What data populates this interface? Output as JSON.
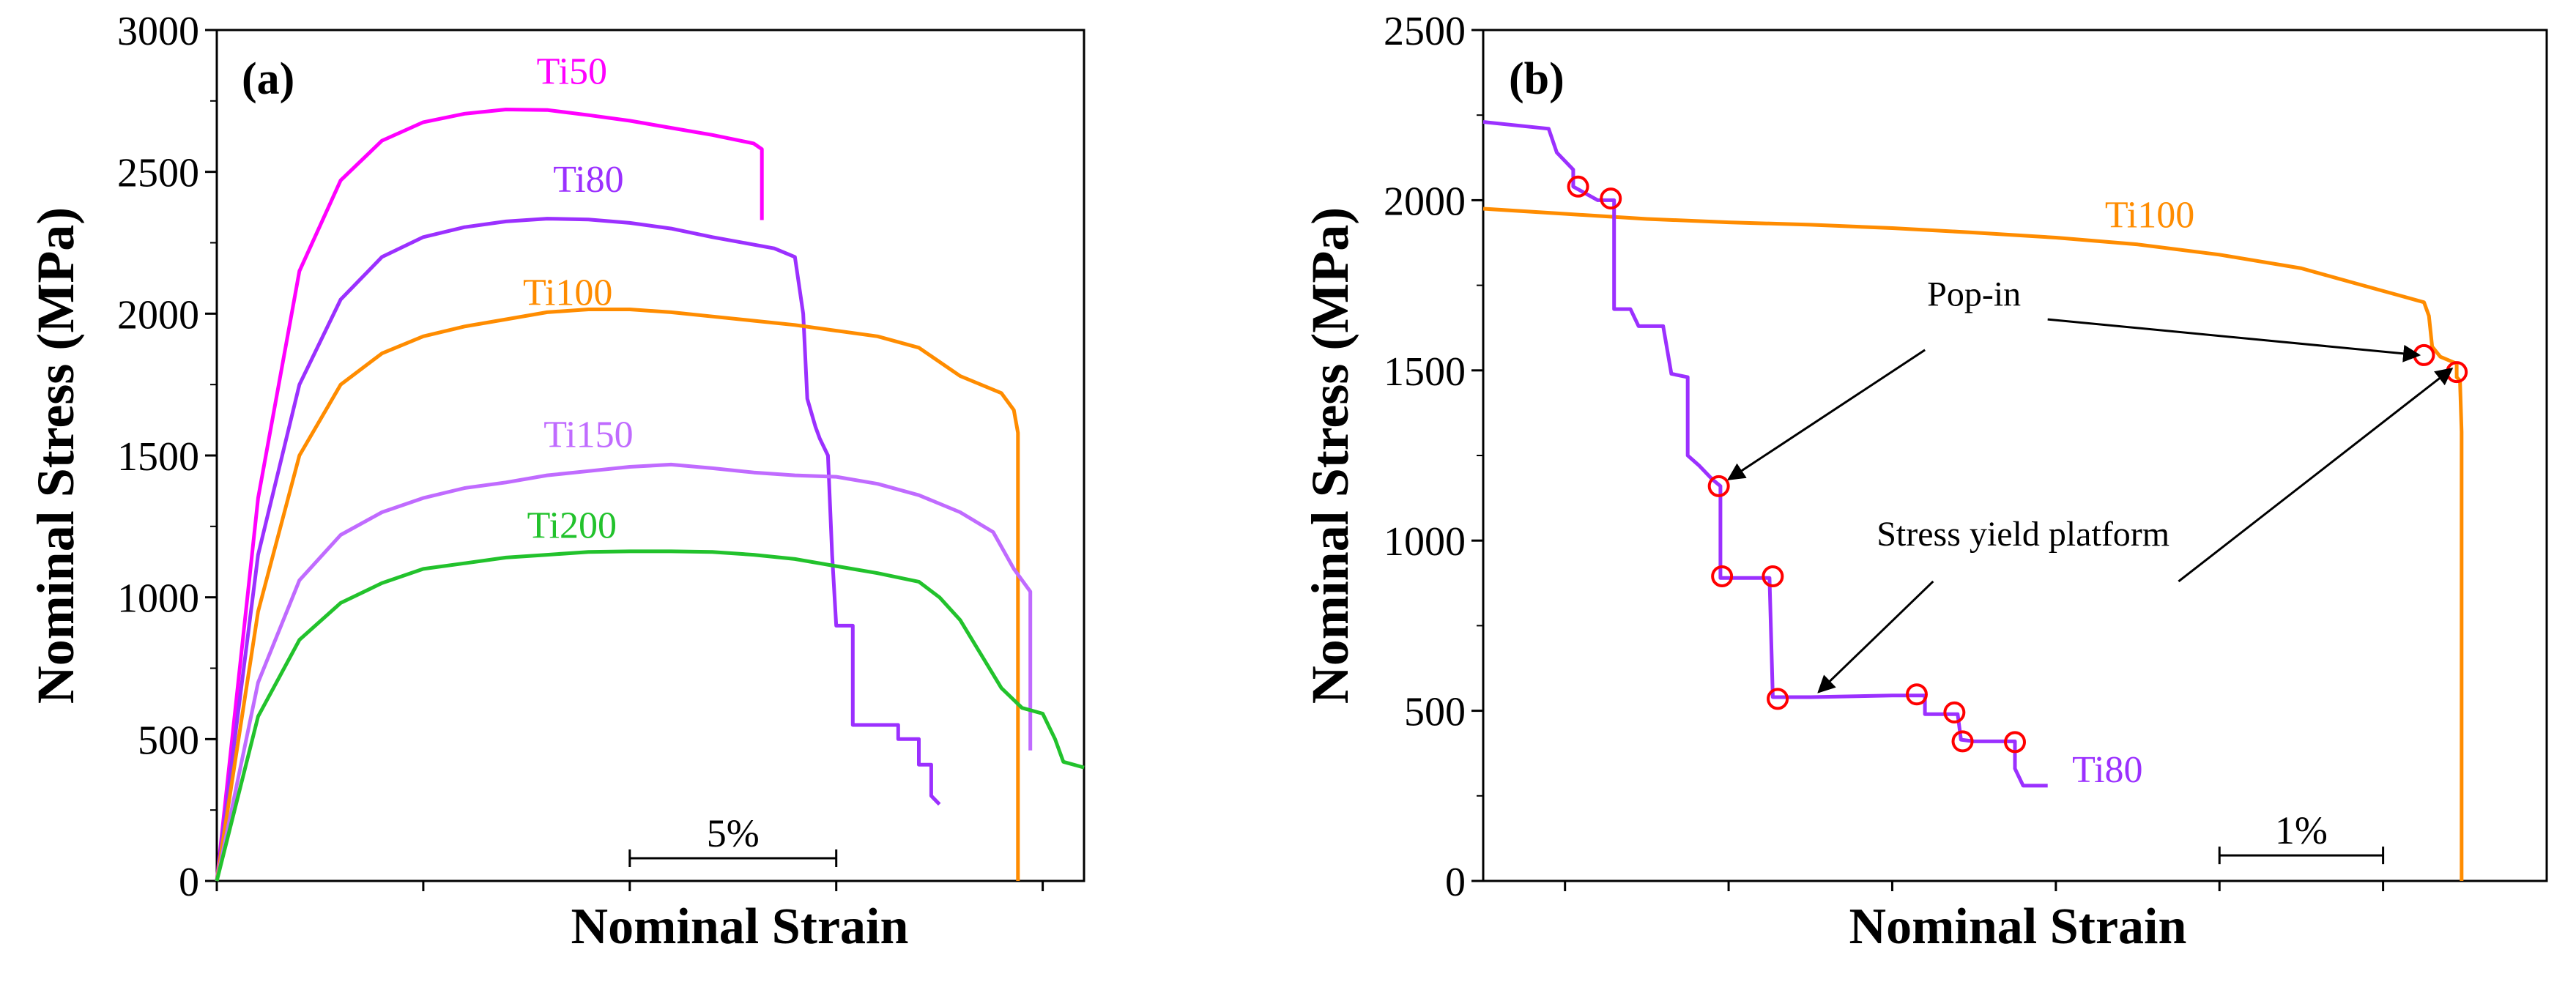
{
  "chart_data": [
    {
      "panel": "a",
      "panel_label": "(a)",
      "type": "line",
      "xlabel": "Nominal Strain",
      "ylabel": "Nominal Stress (MPa)",
      "xlim": [
        0,
        21
      ],
      "ylim": [
        0,
        3000
      ],
      "yticks": [
        0,
        500,
        1000,
        1500,
        2000,
        2500,
        3000
      ],
      "xticks_unlabeled": [
        0,
        5,
        10,
        15,
        20
      ],
      "scale_bar": {
        "label": "5%",
        "from": 10,
        "to": 15,
        "y": 80
      },
      "series": [
        {
          "name": "Ti50",
          "color": "#ff00ff",
          "label_at": [
            8.6,
            2810
          ],
          "points": [
            [
              0,
              0
            ],
            [
              1,
              1350
            ],
            [
              2,
              2150
            ],
            [
              3,
              2470
            ],
            [
              4,
              2610
            ],
            [
              5,
              2675
            ],
            [
              6,
              2705
            ],
            [
              7,
              2720
            ],
            [
              8,
              2718
            ],
            [
              9,
              2700
            ],
            [
              10,
              2680
            ],
            [
              11,
              2655
            ],
            [
              12,
              2630
            ],
            [
              13,
              2600
            ],
            [
              13.2,
              2580
            ],
            [
              13.2,
              2330
            ]
          ]
        },
        {
          "name": "Ti80",
          "color": "#9b30ff",
          "label_at": [
            9.0,
            2430
          ],
          "points": [
            [
              0,
              0
            ],
            [
              1,
              1150
            ],
            [
              2,
              1750
            ],
            [
              3,
              2050
            ],
            [
              4,
              2200
            ],
            [
              5,
              2270
            ],
            [
              6,
              2305
            ],
            [
              7,
              2325
            ],
            [
              8,
              2335
            ],
            [
              9,
              2332
            ],
            [
              10,
              2320
            ],
            [
              11,
              2300
            ],
            [
              12,
              2270
            ],
            [
              13.5,
              2230
            ],
            [
              14,
              2200
            ],
            [
              14.2,
              2000
            ],
            [
              14.3,
              1700
            ],
            [
              14.5,
              1600
            ],
            [
              14.6,
              1560
            ],
            [
              14.8,
              1500
            ],
            [
              14.9,
              1150
            ],
            [
              15.0,
              900
            ],
            [
              15.4,
              900
            ],
            [
              15.4,
              550
            ],
            [
              16.5,
              550
            ],
            [
              16.5,
              500
            ],
            [
              17,
              500
            ],
            [
              17,
              410
            ],
            [
              17.3,
              410
            ],
            [
              17.3,
              300
            ],
            [
              17.5,
              270
            ]
          ]
        },
        {
          "name": "Ti100",
          "color": "#ff8c00",
          "label_at": [
            8.5,
            2030
          ],
          "points": [
            [
              0,
              0
            ],
            [
              1,
              950
            ],
            [
              2,
              1500
            ],
            [
              3,
              1750
            ],
            [
              4,
              1860
            ],
            [
              5,
              1920
            ],
            [
              6,
              1955
            ],
            [
              7,
              1980
            ],
            [
              8,
              2005
            ],
            [
              9,
              2015
            ],
            [
              10,
              2015
            ],
            [
              11,
              2005
            ],
            [
              12,
              1990
            ],
            [
              13,
              1975
            ],
            [
              14,
              1960
            ],
            [
              15,
              1940
            ],
            [
              16,
              1920
            ],
            [
              17,
              1880
            ],
            [
              18,
              1780
            ],
            [
              19,
              1720
            ],
            [
              19.3,
              1660
            ],
            [
              19.4,
              1580
            ],
            [
              19.4,
              0
            ]
          ]
        },
        {
          "name": "Ti150",
          "color": "#c06bff",
          "label_at": [
            9.0,
            1530
          ],
          "points": [
            [
              0,
              0
            ],
            [
              1,
              700
            ],
            [
              2,
              1060
            ],
            [
              3,
              1220
            ],
            [
              4,
              1300
            ],
            [
              5,
              1350
            ],
            [
              6,
              1385
            ],
            [
              7,
              1405
            ],
            [
              8,
              1430
            ],
            [
              9,
              1445
            ],
            [
              10,
              1460
            ],
            [
              11,
              1468
            ],
            [
              12,
              1455
            ],
            [
              13,
              1440
            ],
            [
              14,
              1430
            ],
            [
              15,
              1425
            ],
            [
              16,
              1400
            ],
            [
              17,
              1360
            ],
            [
              18,
              1300
            ],
            [
              18.8,
              1230
            ],
            [
              19.3,
              1100
            ],
            [
              19.7,
              1020
            ],
            [
              19.7,
              460
            ]
          ]
        },
        {
          "name": "Ti200",
          "color": "#22c22c",
          "label_at": [
            8.6,
            1210
          ],
          "points": [
            [
              0,
              0
            ],
            [
              1,
              580
            ],
            [
              2,
              850
            ],
            [
              3,
              980
            ],
            [
              4,
              1050
            ],
            [
              5,
              1100
            ],
            [
              6,
              1120
            ],
            [
              7,
              1140
            ],
            [
              8,
              1150
            ],
            [
              9,
              1160
            ],
            [
              10,
              1162
            ],
            [
              11,
              1162
            ],
            [
              12,
              1160
            ],
            [
              13,
              1150
            ],
            [
              14,
              1135
            ],
            [
              15,
              1110
            ],
            [
              16,
              1085
            ],
            [
              17,
              1055
            ],
            [
              17.5,
              1000
            ],
            [
              18,
              920
            ],
            [
              18.5,
              800
            ],
            [
              19.0,
              680
            ],
            [
              19.5,
              610
            ],
            [
              20,
              590
            ],
            [
              20.3,
              500
            ],
            [
              20.5,
              420
            ],
            [
              21,
              400
            ]
          ]
        }
      ]
    },
    {
      "panel": "b",
      "panel_label": "(b)",
      "type": "line",
      "xlabel": "Nominal Strain",
      "ylabel": "Nominal Stress (MPa)",
      "xlim": [
        0,
        6.5
      ],
      "ylim": [
        0,
        2500
      ],
      "yticks": [
        0,
        500,
        1000,
        1500,
        2000,
        2500
      ],
      "xticks_unlabeled": [
        0.5,
        1.5,
        2.5,
        3.5,
        4.5,
        5.5
      ],
      "scale_bar": {
        "label": "1%",
        "from": 4.5,
        "to": 5.5,
        "y": 75
      },
      "series": [
        {
          "name": "Ti100",
          "color": "#ff8c00",
          "label_at": [
            3.8,
            1920
          ],
          "points": [
            [
              0,
              1975
            ],
            [
              0.5,
              1960
            ],
            [
              1,
              1945
            ],
            [
              1.5,
              1935
            ],
            [
              2,
              1928
            ],
            [
              2.5,
              1918
            ],
            [
              3,
              1905
            ],
            [
              3.5,
              1890
            ],
            [
              4,
              1870
            ],
            [
              4.5,
              1840
            ],
            [
              5,
              1800
            ],
            [
              5.3,
              1760
            ],
            [
              5.6,
              1720
            ],
            [
              5.75,
              1700
            ],
            [
              5.78,
              1660
            ],
            [
              5.8,
              1570
            ],
            [
              5.85,
              1540
            ],
            [
              5.95,
              1520
            ],
            [
              5.95,
              1480
            ],
            [
              5.97,
              1470
            ],
            [
              5.98,
              1320
            ],
            [
              5.98,
              0
            ]
          ]
        },
        {
          "name": "Ti80",
          "color": "#9b30ff",
          "label_at": [
            3.6,
            290
          ],
          "points": [
            [
              0,
              2230
            ],
            [
              0.4,
              2210
            ],
            [
              0.45,
              2140
            ],
            [
              0.55,
              2090
            ],
            [
              0.55,
              2040
            ],
            [
              0.7,
              2000
            ],
            [
              0.8,
              2000
            ],
            [
              0.8,
              1680
            ],
            [
              0.9,
              1680
            ],
            [
              0.95,
              1630
            ],
            [
              1.1,
              1630
            ],
            [
              1.15,
              1490
            ],
            [
              1.25,
              1480
            ],
            [
              1.25,
              1250
            ],
            [
              1.32,
              1220
            ],
            [
              1.4,
              1180
            ],
            [
              1.45,
              1160
            ],
            [
              1.45,
              890
            ],
            [
              1.75,
              890
            ],
            [
              1.77,
              540
            ],
            [
              2.0,
              540
            ],
            [
              2.5,
              545
            ],
            [
              2.7,
              545
            ],
            [
              2.7,
              490
            ],
            [
              2.9,
              490
            ],
            [
              2.92,
              415
            ],
            [
              3.0,
              410
            ],
            [
              3.25,
              410
            ],
            [
              3.25,
              330
            ],
            [
              3.3,
              280
            ],
            [
              3.45,
              280
            ]
          ]
        }
      ],
      "markers": [
        [
          0.58,
          2040
        ],
        [
          0.78,
          2005
        ],
        [
          1.44,
          1160
        ],
        [
          1.46,
          895
        ],
        [
          1.77,
          895
        ],
        [
          1.8,
          535
        ],
        [
          2.65,
          548
        ],
        [
          2.88,
          495
        ],
        [
          2.93,
          410
        ],
        [
          3.25,
          408
        ],
        [
          5.75,
          1545
        ],
        [
          5.95,
          1495
        ]
      ],
      "annotations": [
        {
          "text": "Pop-in",
          "at": [
            3.0,
            1690
          ]
        },
        {
          "text": "Stress yield platform",
          "at": [
            3.3,
            985
          ]
        }
      ]
    }
  ]
}
